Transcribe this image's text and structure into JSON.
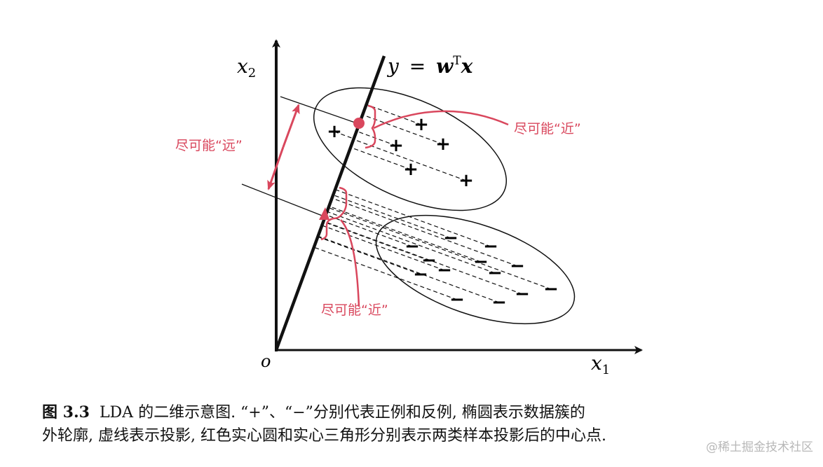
{
  "figure": {
    "axis_x_label": "x",
    "axis_x_sub": "1",
    "axis_y_label": "x",
    "axis_y_sub": "2",
    "origin_label": "o",
    "projection_line_label": {
      "y": "y",
      "eq": "=",
      "w": "w",
      "T": "T",
      "x": "x"
    },
    "annotation_far": "尽可能“远”",
    "annotation_near_positive": "尽可能“近”",
    "annotation_near_negative": "尽可能“近”",
    "positive_symbol": "+",
    "negative_symbol": "−",
    "colors": {
      "annotation": "#d9475d",
      "lines": "#111111"
    }
  },
  "caption": {
    "figure_number": "图 3.3",
    "line1": "LDA 的二维示意图. “+”、“−”分别代表正例和反例, 椭圆表示数据簇的",
    "line2": "外轮廓, 虚线表示投影, 红色实心圆和实心三角形分别表示两类样本投影后的中心点."
  },
  "watermark": "@稀土掘金技术社区"
}
